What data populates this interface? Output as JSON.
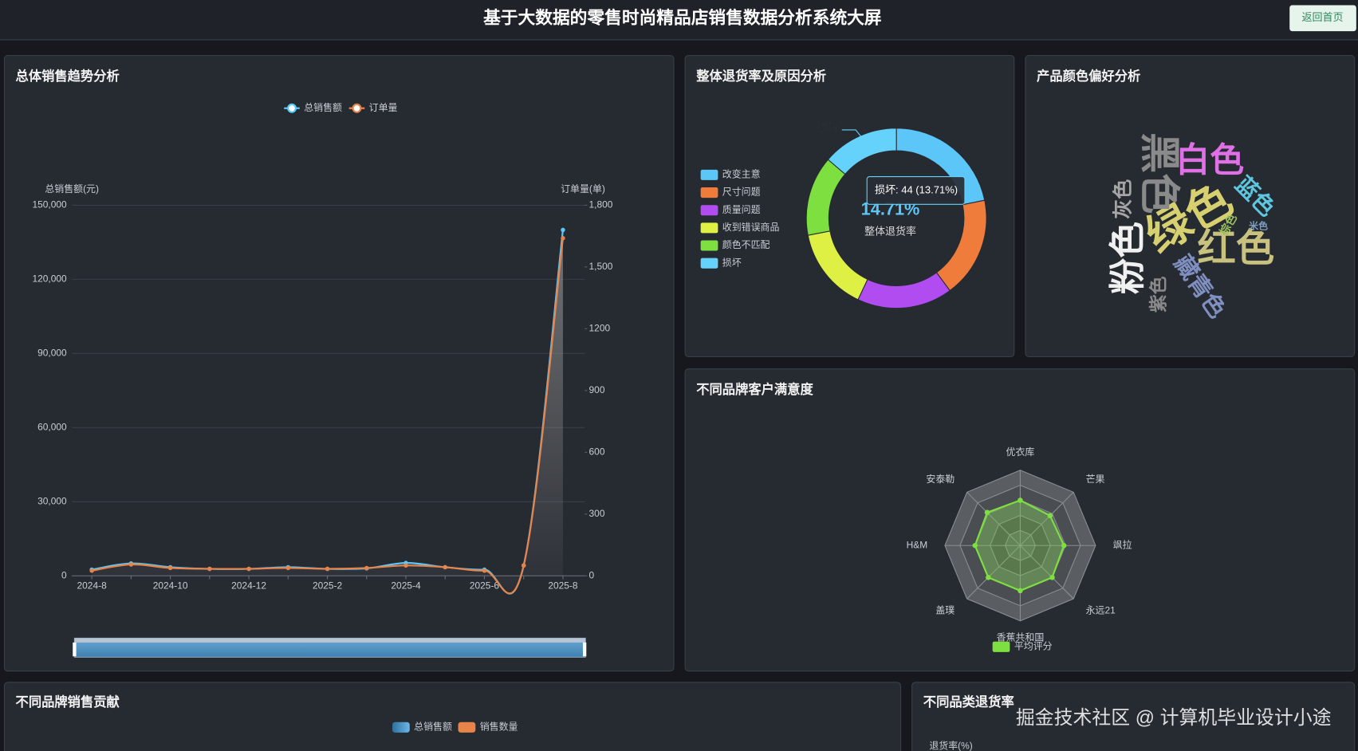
{
  "header": {
    "title": "基于大数据的零售时尚精品店销售数据分析系统大屏",
    "button": "返回首页"
  },
  "watermark": "掘金技术社区 @ 计算机毕业设计小途",
  "chart_data": [
    {
      "type": "line",
      "title": "总体销售趋势分析",
      "y_axis_label": "总销售额(元)",
      "y2_axis_label": "订单量(单)",
      "categories": [
        "2024-8",
        null,
        "2024-10",
        null,
        "2024-12",
        null,
        "2025-2",
        null,
        "2025-4",
        null,
        "2025-6",
        null,
        "2025-8"
      ],
      "series": [
        {
          "name": "总销售额",
          "color": "#5ac8fa",
          "values": [
            2500,
            5000,
            3500,
            2800,
            2800,
            3500,
            2800,
            3000,
            5200,
            3500,
            2500,
            4200,
            140000
          ]
        },
        {
          "name": "订单量",
          "color": "#e8834a",
          "axis": "y2",
          "area": true,
          "values": [
            25,
            55,
            38,
            34,
            34,
            38,
            34,
            38,
            50,
            42,
            25,
            50,
            1640
          ]
        }
      ],
      "ylim": [
        0,
        150000
      ],
      "yticks": [
        0,
        {
          "value": 30000,
          "label": "30,000"
        },
        {
          "value": 60000,
          "label": "60,000"
        },
        {
          "value": 90000,
          "label": "90,000"
        },
        {
          "value": 120000,
          "label": "120,000"
        },
        {
          "value": 150000,
          "label": "150,000"
        }
      ],
      "y2lim": [
        0,
        1800
      ],
      "y2ticks": [
        0,
        300,
        600,
        900,
        1200,
        {
          "value": 1500,
          "label": "1,500"
        },
        {
          "value": 1800,
          "label": "1,800"
        }
      ],
      "grid": true
    },
    {
      "type": "pie",
      "title": "整体退货率及原因分析",
      "donut": true,
      "categories": [
        "改变主意",
        "尺寸问题",
        "质量问题",
        "收到错误商品",
        "颜色不匹配",
        "损坏"
      ],
      "values": [
        70,
        58,
        55,
        48,
        46,
        44
      ],
      "colors": [
        "#5cc6f8",
        "#f07c3c",
        "#b04cf0",
        "#def044",
        "#7ee040",
        "#64d2fa"
      ],
      "center_value": "14.71%",
      "center_label": "整体退货率",
      "tooltip": "损坏: 44 (13.71%)"
    },
    {
      "type": "wordcloud",
      "title": "产品颜色偏好分析",
      "words": [
        {
          "text": "绿色",
          "value": 100,
          "color": "#d6d070"
        },
        {
          "text": "黑色",
          "value": 90,
          "color": "#8a8a8a"
        },
        {
          "text": "白色",
          "value": 75,
          "color": "#e070e6"
        },
        {
          "text": "粉色",
          "value": 80,
          "color": "#f0f0f0"
        },
        {
          "text": "红色",
          "value": 85,
          "color": "#c8c27e"
        },
        {
          "text": "藏青色",
          "value": 50,
          "color": "#7f8fc0"
        },
        {
          "text": "蓝色",
          "value": 48,
          "color": "#5ec6de"
        },
        {
          "text": "灰色",
          "value": 42,
          "color": "#a6a6a6"
        },
        {
          "text": "紫色",
          "value": 38,
          "color": "#8a8a8a"
        },
        {
          "text": "棕色",
          "value": 22,
          "color": "#9cc060"
        },
        {
          "text": "米色",
          "value": 18,
          "color": "#7f9fc0"
        }
      ]
    },
    {
      "type": "radar",
      "title": "不同品牌客户满意度",
      "categories": [
        "优衣库",
        "芒果",
        "飒拉",
        "永远21",
        "香蕉共和国",
        "盖璞",
        "H&M",
        "安泰勒"
      ],
      "series": [
        {
          "name": "平均评分",
          "color": "#7ee040",
          "values": [
            3.0,
            2.8,
            2.9,
            3.0,
            3.0,
            3.0,
            3.0,
            3.1
          ]
        }
      ],
      "rlim": [
        0,
        5
      ],
      "rticks": [
        1,
        2,
        3,
        4,
        5
      ]
    },
    {
      "type": "bar",
      "title": "不同品牌销售贡献",
      "series": [
        {
          "name": "总销售额",
          "color": "#4f9fd6"
        },
        {
          "name": "销售数量",
          "color": "#e8834a"
        }
      ]
    },
    {
      "type": "bar",
      "title": "不同品类退货率",
      "y_axis_label": "退货率(%)"
    }
  ]
}
